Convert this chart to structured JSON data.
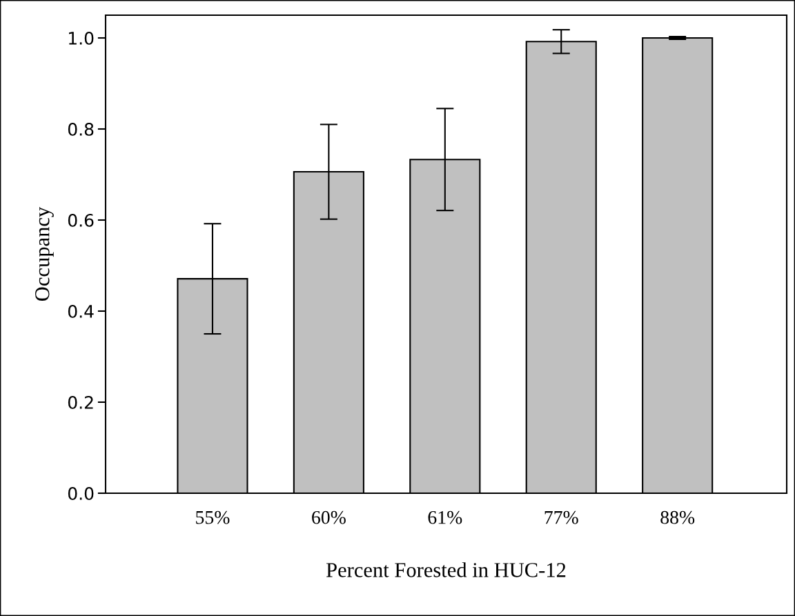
{
  "chart_data": {
    "type": "bar",
    "xlabel": "Percent Forested in HUC-12",
    "ylabel": "Occupancy",
    "categories": [
      "55%",
      "60%",
      "61%",
      "77%",
      "88%"
    ],
    "values": [
      0.471,
      0.706,
      0.733,
      0.992,
      1.0
    ],
    "errors": [
      0.121,
      0.104,
      0.112,
      0.026,
      0.003
    ],
    "color": "#c0c0c0",
    "ylim": [
      0,
      1.05
    ],
    "yticks": [
      {
        "value": 0,
        "label": "0.0"
      },
      0.2,
      0.4,
      0.6,
      0.8,
      {
        "value": 1,
        "label": "1.0"
      }
    ],
    "grid": false,
    "legend": false
  }
}
